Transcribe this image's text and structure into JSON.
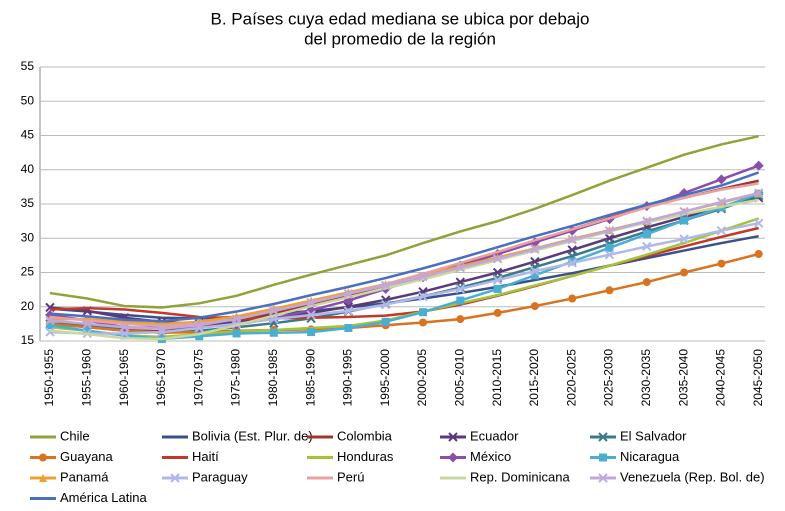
{
  "chart_data": {
    "type": "line",
    "title": [
      "B. Países cuya edad mediana se ubica por debajo",
      "del promedio de la región"
    ],
    "categories": [
      "1950-1955",
      "1955-1960",
      "1960-1965",
      "1965-1970",
      "1970-1975",
      "1975-1980",
      "1980-1985",
      "1985-1990",
      "1990-1995",
      "1995-2000",
      "2000-2005",
      "2005-2010",
      "2010-2015",
      "2015-2020",
      "2020-2025",
      "2025-2030",
      "2030-2035",
      "2035-2040",
      "2040-2045",
      "2045-2050"
    ],
    "ylim": [
      15,
      55
    ],
    "yticks": [
      15,
      20,
      25,
      30,
      35,
      40,
      45,
      50,
      55
    ],
    "grid": true,
    "series": [
      {
        "name": "Chile",
        "color": "#8fa33a",
        "marker": "none",
        "values": [
          22,
          21.2,
          20.1,
          19.9,
          20.5,
          21.6,
          23.2,
          24.7,
          26.1,
          27.5,
          29.3,
          31.0,
          32.5,
          34.3,
          36.3,
          38.4,
          40.3,
          42.2,
          43.7,
          44.9
        ]
      },
      {
        "name": "Bolivia (Est. Plur. de)",
        "color": "#3b4f8a",
        "marker": "none",
        "values": [
          19.7,
          19.3,
          18.8,
          18.4,
          18.3,
          18.5,
          18.9,
          19.4,
          19.9,
          20.5,
          21.2,
          22.0,
          22.9,
          23.9,
          24.9,
          26.0,
          27.1,
          28.2,
          29.3,
          30.3
        ]
      },
      {
        "name": "Colombia",
        "color": "#a0332e",
        "marker": "none",
        "values": [
          18.0,
          17.4,
          16.6,
          16.4,
          17.0,
          17.8,
          19.0,
          20.3,
          21.7,
          23.1,
          24.5,
          26.1,
          27.8,
          29.5,
          31.3,
          33.0,
          34.6,
          35.9,
          37.2,
          38.4
        ]
      },
      {
        "name": "Ecuador",
        "color": "#5b3a7a",
        "marker": "x",
        "values": [
          19.9,
          19.4,
          18.4,
          17.8,
          17.5,
          17.7,
          18.3,
          19.1,
          20.0,
          21.0,
          22.2,
          23.6,
          25.0,
          26.6,
          28.3,
          30.0,
          31.6,
          33.1,
          34.5,
          35.9
        ]
      },
      {
        "name": "El Salvador",
        "color": "#3b7a8a",
        "marker": "x",
        "values": [
          17.5,
          17.4,
          16.6,
          16.2,
          16.5,
          17.0,
          17.6,
          18.3,
          19.3,
          20.4,
          21.5,
          22.8,
          24.2,
          25.8,
          27.4,
          29.2,
          31.0,
          32.6,
          34.3,
          36.2
        ]
      },
      {
        "name": "Guayana",
        "color": "#d9731f",
        "marker": "circle",
        "values": [
          17.5,
          17.0,
          16.5,
          16.2,
          16.3,
          16.5,
          16.6,
          16.7,
          16.9,
          17.3,
          17.7,
          18.2,
          19.1,
          20.1,
          21.2,
          22.4,
          23.6,
          25.0,
          26.3,
          27.7
        ]
      },
      {
        "name": "Haití",
        "color": "#c0392b",
        "marker": "none",
        "values": [
          19.6,
          19.8,
          19.6,
          19.1,
          18.5,
          18.3,
          18.3,
          18.4,
          18.5,
          18.7,
          19.3,
          20.3,
          21.6,
          23.0,
          24.5,
          26.0,
          27.4,
          28.8,
          30.2,
          31.5
        ]
      },
      {
        "name": "Honduras",
        "color": "#a3c43a",
        "marker": "none",
        "values": [
          17.0,
          16.5,
          15.8,
          15.6,
          16.0,
          16.4,
          16.6,
          16.9,
          17.2,
          18.0,
          19.3,
          20.5,
          21.7,
          23.1,
          24.5,
          26.0,
          27.6,
          29.3,
          31.1,
          32.9
        ]
      },
      {
        "name": "México",
        "color": "#8a4fa8",
        "marker": "diamond",
        "values": [
          18.8,
          18.0,
          17.0,
          16.9,
          17.0,
          17.4,
          18.3,
          19.5,
          20.9,
          22.6,
          24.3,
          26.0,
          27.7,
          29.4,
          31.1,
          32.8,
          34.7,
          36.6,
          38.6,
          40.6
        ]
      },
      {
        "name": "Nicaragua",
        "color": "#4aaed0",
        "marker": "square",
        "values": [
          17.3,
          16.5,
          15.8,
          15.3,
          15.7,
          16.1,
          16.2,
          16.3,
          16.9,
          17.8,
          19.2,
          20.9,
          22.6,
          24.6,
          26.6,
          28.6,
          30.6,
          32.6,
          34.5,
          36.5
        ]
      },
      {
        "name": "Panamá",
        "color": "#f0a030",
        "marker": "triangle",
        "values": [
          18.2,
          18.2,
          17.8,
          17.5,
          17.8,
          18.6,
          19.7,
          20.9,
          22.1,
          23.3,
          24.6,
          25.9,
          27.2,
          28.5,
          29.9,
          31.2,
          32.5,
          33.9,
          35.2,
          36.6
        ]
      },
      {
        "name": "Paraguay",
        "color": "#b0b8e8",
        "marker": "x",
        "values": [
          16.3,
          16.1,
          16.1,
          16.3,
          16.9,
          17.5,
          18.2,
          18.8,
          19.4,
          20.3,
          21.5,
          22.6,
          23.9,
          25.2,
          26.4,
          27.6,
          28.8,
          29.9,
          31.1,
          32.2
        ]
      },
      {
        "name": "Perú",
        "color": "#e8a0a0",
        "marker": "none",
        "values": [
          18.5,
          18.0,
          17.5,
          17.2,
          17.5,
          18.2,
          19.4,
          20.6,
          21.9,
          23.3,
          24.8,
          26.4,
          28.0,
          29.7,
          31.3,
          32.9,
          34.5,
          35.9,
          37.1,
          38.0
        ]
      },
      {
        "name": "Rep. Dominicana",
        "color": "#c8d8a0",
        "marker": "none",
        "values": [
          16.5,
          16.0,
          15.4,
          15.3,
          16.0,
          17.3,
          18.7,
          20.1,
          21.4,
          22.7,
          24.0,
          25.4,
          26.8,
          28.2,
          29.6,
          31.0,
          32.3,
          33.5,
          34.6,
          35.6
        ]
      },
      {
        "name": "Venezuela (Rep. Bol. de)",
        "color": "#c0a8d8",
        "marker": "x",
        "values": [
          18.0,
          17.5,
          17.0,
          16.8,
          17.3,
          18.2,
          19.4,
          20.6,
          21.9,
          23.1,
          24.4,
          25.7,
          27.0,
          28.4,
          29.8,
          31.1,
          32.5,
          33.9,
          35.3,
          36.6
        ]
      },
      {
        "name": "América Latina",
        "color": "#4a6fc0",
        "marker": "none",
        "values": [
          19.0,
          18.6,
          18.1,
          17.9,
          18.4,
          19.3,
          20.4,
          21.7,
          22.9,
          24.2,
          25.6,
          27.1,
          28.7,
          30.3,
          31.8,
          33.4,
          34.9,
          36.3,
          37.7,
          39.6
        ]
      }
    ]
  }
}
